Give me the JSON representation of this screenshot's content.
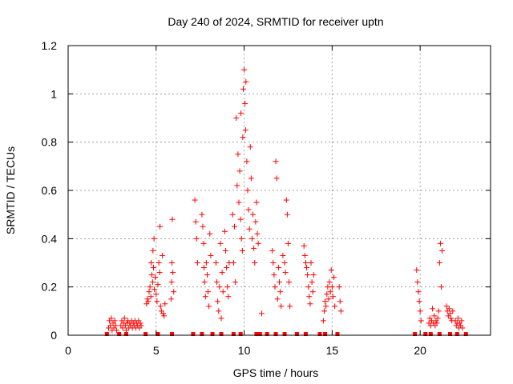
{
  "chart_data": {
    "type": "scatter",
    "title": "Day 240 of 2024, SRMTID for receiver uptn",
    "xlabel": "GPS time / hours",
    "ylabel": "SRMTID / TECUs",
    "xlim": [
      0,
      24
    ],
    "ylim": [
      0,
      1.2
    ],
    "xticks": [
      0,
      5,
      10,
      15,
      20
    ],
    "yticks": [
      0,
      0.2,
      0.4,
      0.6,
      0.8,
      1,
      1.2
    ],
    "xtick_labels": [
      "0",
      "5",
      "10",
      "15",
      "20"
    ],
    "ytick_labels": [
      "0",
      "0.2",
      "0.4",
      "0.6",
      "0.8",
      "1",
      "1.2"
    ],
    "grid": true,
    "marker": "+",
    "series": [
      {
        "name": "SRMTID",
        "color": "#ff0000",
        "points": [
          [
            2.3,
            0.03
          ],
          [
            2.35,
            0.06
          ],
          [
            2.4,
            0.04
          ],
          [
            2.45,
            0.07
          ],
          [
            2.5,
            0.02
          ],
          [
            2.55,
            0.05
          ],
          [
            2.6,
            0.03
          ],
          [
            2.65,
            0.06
          ],
          [
            2.7,
            0.04
          ],
          [
            2.75,
            0.02
          ],
          [
            3.0,
            0.04
          ],
          [
            3.05,
            0.06
          ],
          [
            3.1,
            0.03
          ],
          [
            3.15,
            0.05
          ],
          [
            3.2,
            0.07
          ],
          [
            3.25,
            0.04
          ],
          [
            3.3,
            0.02
          ],
          [
            3.35,
            0.05
          ],
          [
            3.4,
            0.06
          ],
          [
            3.45,
            0.03
          ],
          [
            3.5,
            0.05
          ],
          [
            3.55,
            0.04
          ],
          [
            3.6,
            0.06
          ],
          [
            3.65,
            0.03
          ],
          [
            3.7,
            0.05
          ],
          [
            3.75,
            0.04
          ],
          [
            3.8,
            0.06
          ],
          [
            3.85,
            0.03
          ],
          [
            3.9,
            0.05
          ],
          [
            3.95,
            0.04
          ],
          [
            4.0,
            0.06
          ],
          [
            4.05,
            0.03
          ],
          [
            4.1,
            0.05
          ],
          [
            4.15,
            0.04
          ],
          [
            4.45,
            0.13
          ],
          [
            4.5,
            0.15
          ],
          [
            4.55,
            0.14
          ],
          [
            4.6,
            0.18
          ],
          [
            4.65,
            0.2
          ],
          [
            4.7,
            0.16
          ],
          [
            4.72,
            0.3
          ],
          [
            4.75,
            0.25
          ],
          [
            4.8,
            0.22
          ],
          [
            4.82,
            0.35
          ],
          [
            4.85,
            0.28
          ],
          [
            4.88,
            0.4
          ],
          [
            4.9,
            0.19
          ],
          [
            4.95,
            0.24
          ],
          [
            5.0,
            0.17
          ],
          [
            5.05,
            0.14
          ],
          [
            5.1,
            0.21
          ],
          [
            5.15,
            0.3
          ],
          [
            5.2,
            0.26
          ],
          [
            5.22,
            0.45
          ],
          [
            5.25,
            0.12
          ],
          [
            5.3,
            0.1
          ],
          [
            5.35,
            0.33
          ],
          [
            5.4,
            0.09
          ],
          [
            5.45,
            0.08
          ],
          [
            5.5,
            0.13
          ],
          [
            5.85,
            0.15
          ],
          [
            5.88,
            0.22
          ],
          [
            5.9,
            0.3
          ],
          [
            5.92,
            0.48
          ],
          [
            5.95,
            0.26
          ],
          [
            6.0,
            0.18
          ],
          [
            7.2,
            0.56
          ],
          [
            7.25,
            0.47
          ],
          [
            7.3,
            0.4
          ],
          [
            7.35,
            0.3
          ],
          [
            7.6,
            0.5
          ],
          [
            7.65,
            0.45
          ],
          [
            7.7,
            0.38
          ],
          [
            7.72,
            0.28
          ],
          [
            7.75,
            0.22
          ],
          [
            7.8,
            0.16
          ],
          [
            7.85,
            0.3
          ],
          [
            7.9,
            0.25
          ],
          [
            7.95,
            0.18
          ],
          [
            8.0,
            0.12
          ],
          [
            8.05,
            0.42
          ],
          [
            8.1,
            0.33
          ],
          [
            8.4,
            0.3
          ],
          [
            8.45,
            0.22
          ],
          [
            8.5,
            0.14
          ],
          [
            8.55,
            0.1
          ],
          [
            8.6,
            0.2
          ],
          [
            8.65,
            0.38
          ],
          [
            8.7,
            0.07
          ],
          [
            8.75,
            0.26
          ],
          [
            8.8,
            0.18
          ],
          [
            8.9,
            0.43
          ],
          [
            8.95,
            0.35
          ],
          [
            9.0,
            0.28
          ],
          [
            9.05,
            0.2
          ],
          [
            9.1,
            0.16
          ],
          [
            9.15,
            0.3
          ],
          [
            9.35,
            0.5
          ],
          [
            9.4,
            0.3
          ],
          [
            9.45,
            0.45
          ],
          [
            9.5,
            0.22
          ],
          [
            9.55,
            0.9
          ],
          [
            9.6,
            0.62
          ],
          [
            9.65,
            0.75
          ],
          [
            9.7,
            0.55
          ],
          [
            9.75,
            0.68
          ],
          [
            9.8,
            0.48
          ],
          [
            9.82,
            0.92
          ],
          [
            9.85,
            0.4
          ],
          [
            9.9,
            0.35
          ],
          [
            9.92,
            0.82
          ],
          [
            9.95,
            1.02
          ],
          [
            10.0,
            1.1
          ],
          [
            10.05,
            0.96
          ],
          [
            10.08,
            0.85
          ],
          [
            10.1,
            1.05
          ],
          [
            10.15,
            0.72
          ],
          [
            10.2,
            0.6
          ],
          [
            10.25,
            0.52
          ],
          [
            10.3,
            0.44
          ],
          [
            10.35,
            0.78
          ],
          [
            10.4,
            0.65
          ],
          [
            10.45,
            0.4
          ],
          [
            10.5,
            0.5
          ],
          [
            10.55,
            0.36
          ],
          [
            10.6,
            0.3
          ],
          [
            10.65,
            0.47
          ],
          [
            10.7,
            0.55
          ],
          [
            10.75,
            0.42
          ],
          [
            10.8,
            0.38
          ],
          [
            11.0,
            0.09
          ],
          [
            11.6,
            0.35
          ],
          [
            11.65,
            0.3
          ],
          [
            11.7,
            0.25
          ],
          [
            11.75,
            0.2
          ],
          [
            11.8,
            0.72
          ],
          [
            11.85,
            0.65
          ],
          [
            11.9,
            0.15
          ],
          [
            11.95,
            0.28
          ],
          [
            12.0,
            0.22
          ],
          [
            12.05,
            0.18
          ],
          [
            12.1,
            0.12
          ],
          [
            12.2,
            0.33
          ],
          [
            12.3,
            0.3
          ],
          [
            12.35,
            0.26
          ],
          [
            12.4,
            0.56
          ],
          [
            12.45,
            0.5
          ],
          [
            12.5,
            0.38
          ],
          [
            12.55,
            0.22
          ],
          [
            12.6,
            0.12
          ],
          [
            13.4,
            0.37
          ],
          [
            13.45,
            0.33
          ],
          [
            13.5,
            0.3
          ],
          [
            13.55,
            0.28
          ],
          [
            13.6,
            0.25
          ],
          [
            13.65,
            0.2
          ],
          [
            13.7,
            0.16
          ],
          [
            13.75,
            0.13
          ],
          [
            13.8,
            0.3
          ],
          [
            13.85,
            0.22
          ],
          [
            13.9,
            0.18
          ],
          [
            13.95,
            0.25
          ],
          [
            14.5,
            0.06
          ],
          [
            14.55,
            0.1
          ],
          [
            14.6,
            0.14
          ],
          [
            14.65,
            0.12
          ],
          [
            14.7,
            0.17
          ],
          [
            14.75,
            0.2
          ],
          [
            14.8,
            0.15
          ],
          [
            14.85,
            0.22
          ],
          [
            14.9,
            0.18
          ],
          [
            14.95,
            0.27
          ],
          [
            15.0,
            0.2
          ],
          [
            15.05,
            0.16
          ],
          [
            15.1,
            0.24
          ],
          [
            15.15,
            0.12
          ],
          [
            15.4,
            0.2
          ],
          [
            15.45,
            0.14
          ],
          [
            15.5,
            0.1
          ],
          [
            19.8,
            0.27
          ],
          [
            19.85,
            0.22
          ],
          [
            19.9,
            0.18
          ],
          [
            19.95,
            0.14
          ],
          [
            20.0,
            0.1
          ],
          [
            20.05,
            0.06
          ],
          [
            20.5,
            0.05
          ],
          [
            20.55,
            0.07
          ],
          [
            20.6,
            0.04
          ],
          [
            20.65,
            0.06
          ],
          [
            20.7,
            0.11
          ],
          [
            20.75,
            0.05
          ],
          [
            20.8,
            0.08
          ],
          [
            20.85,
            0.04
          ],
          [
            20.9,
            0.06
          ],
          [
            20.95,
            0.05
          ],
          [
            21.0,
            0.07
          ],
          [
            21.05,
            0.1
          ],
          [
            21.1,
            0.3
          ],
          [
            21.15,
            0.38
          ],
          [
            21.2,
            0.2
          ],
          [
            21.25,
            0.35
          ],
          [
            21.5,
            0.12
          ],
          [
            21.55,
            0.1
          ],
          [
            21.6,
            0.08
          ],
          [
            21.65,
            0.11
          ],
          [
            21.7,
            0.09
          ],
          [
            21.75,
            0.07
          ],
          [
            21.8,
            0.06
          ],
          [
            21.85,
            0.1
          ],
          [
            22.0,
            0.06
          ],
          [
            22.05,
            0.04
          ],
          [
            22.1,
            0.05
          ],
          [
            22.15,
            0.07
          ],
          [
            22.2,
            0.03
          ],
          [
            22.25,
            0.05
          ],
          [
            22.3,
            0.04
          ],
          [
            22.35,
            0.06
          ],
          [
            22.4,
            0.03
          ]
        ],
        "zero_markers": [
          2.2,
          2.9,
          3.3,
          4.4,
          5.1,
          5.9,
          7.1,
          7.6,
          8.2,
          8.7,
          9.4,
          9.8,
          10.7,
          10.9,
          11.3,
          11.8,
          12.3,
          13.0,
          13.5,
          14.3,
          14.6,
          15.3,
          19.7,
          20.3,
          20.6,
          21.1,
          21.7,
          22.1,
          22.6
        ]
      }
    ]
  }
}
